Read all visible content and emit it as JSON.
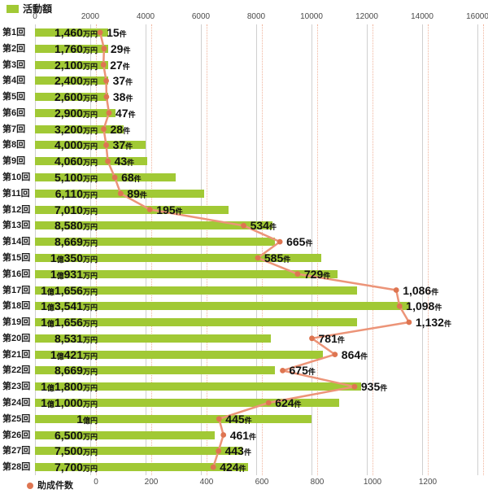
{
  "legend_top": {
    "label": "活動額"
  },
  "legend_bottom": {
    "label": "助成件数"
  },
  "colors": {
    "bar": "#a1c935",
    "line": "#ec9478",
    "marker": "#de7551",
    "grid": "#cfcfcf",
    "grid_dotted": "#f0b49c",
    "text": "#111111",
    "axis_text": "#4a4a4a"
  },
  "chart_data": {
    "type": "bar",
    "orientation": "horizontal",
    "title": "",
    "categories": [
      "第1回",
      "第2回",
      "第3回",
      "第4回",
      "第5回",
      "第6回",
      "第7回",
      "第8回",
      "第9回",
      "第10回",
      "第11回",
      "第12回",
      "第13回",
      "第14回",
      "第15回",
      "第16回",
      "第17回",
      "第18回",
      "第19回",
      "第20回",
      "第21回",
      "第22回",
      "第23回",
      "第24回",
      "第25回",
      "第26回",
      "第27回",
      "第28回"
    ],
    "series": [
      {
        "name": "活動額",
        "type": "bar",
        "axis": "top",
        "unit": "万円",
        "values": [
          1460,
          1760,
          2100,
          2400,
          2600,
          2900,
          3200,
          4000,
          4060,
          5100,
          6110,
          7010,
          8580,
          8669,
          10350,
          10931,
          11656,
          13541,
          11656,
          8531,
          10421,
          8669,
          11800,
          11000,
          10000,
          6500,
          7500,
          7700
        ],
        "labels": [
          "1,460万円",
          "1,760万円",
          "2,100万円",
          "2,400万円",
          "2,600万円",
          "2,900万円",
          "3,200万円",
          "4,000万円",
          "4,060万円",
          "5,100万円",
          "6,110万円",
          "7,010万円",
          "8,580万円",
          "8,669万円",
          "1億350万円",
          "1億931万円",
          "1億1,656万円",
          "1億3,541万円",
          "1億1,656万円",
          "8,531万円",
          "1億421万円",
          "8,669万円",
          "1億1,800万円",
          "1億1,000万円",
          "1億円",
          "6,500万円",
          "7,500万円",
          "7,700万円"
        ]
      },
      {
        "name": "助成件数",
        "type": "line",
        "axis": "bottom",
        "unit": "件",
        "values": [
          15,
          29,
          27,
          37,
          38,
          47,
          28,
          37,
          43,
          68,
          89,
          195,
          534,
          665,
          585,
          729,
          1086,
          1098,
          1132,
          781,
          864,
          675,
          935,
          624,
          445,
          461,
          443,
          424
        ],
        "labels": [
          "15件",
          "29件",
          "27件",
          "37件",
          "38件",
          "47件",
          "28件",
          "37件",
          "43件",
          "68件",
          "89件",
          "195件",
          "534件",
          "665件",
          "585件",
          "729件",
          "1,086件",
          "1,098件",
          "1,132件",
          "781件",
          "864件",
          "675件",
          "935件",
          "624件",
          "445件",
          "461件",
          "443件",
          "424件"
        ]
      }
    ],
    "top_axis": {
      "min": 0,
      "max": 16000,
      "step": 2000,
      "ticks": [
        0,
        2000,
        4000,
        6000,
        8000,
        10000,
        12000,
        14000,
        16000
      ]
    },
    "bottom_axis": {
      "min": 0,
      "max": 1400,
      "step": 200,
      "ticks": [
        0,
        200,
        400,
        600,
        800,
        1000,
        1200
      ]
    },
    "grid": true,
    "legend_positions": {
      "活動額": "top-left",
      "助成件数": "bottom-left"
    }
  }
}
